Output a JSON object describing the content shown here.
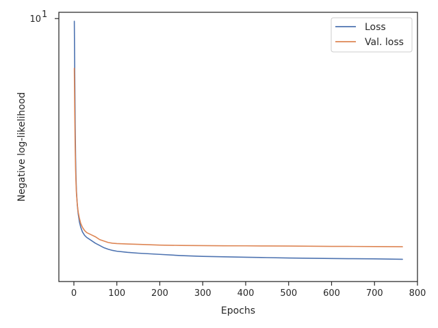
{
  "chart_data": {
    "type": "line",
    "title": "",
    "xlabel": "Epochs",
    "ylabel": "Negative log-likelihood",
    "xlim": [
      -35,
      800
    ],
    "ylim_log": [
      1.3,
      10.5
    ],
    "yscale": "log",
    "x_ticks": [
      0,
      100,
      200,
      300,
      400,
      500,
      600,
      700,
      800
    ],
    "y_ticks": [
      10
    ],
    "y_tick_labels": [
      {
        "base": "10",
        "exp": "1"
      }
    ],
    "grid": false,
    "legend": "top-right",
    "colors": {
      "loss": "#4c72b0",
      "val_loss": "#dd8452",
      "axis": "#262626"
    },
    "series": [
      {
        "name": "Loss",
        "color": "#4c72b0",
        "x": [
          1,
          2,
          3,
          4,
          5,
          6,
          8,
          10,
          13,
          16,
          20,
          25,
          30,
          40,
          50,
          60,
          70,
          80,
          90,
          100,
          125,
          150,
          200,
          250,
          300,
          350,
          400,
          450,
          500,
          550,
          600,
          650,
          700,
          765
        ],
        "y": [
          9.8,
          6.5,
          4.4,
          3.4,
          2.9,
          2.62,
          2.35,
          2.2,
          2.06,
          1.98,
          1.91,
          1.86,
          1.83,
          1.79,
          1.75,
          1.72,
          1.69,
          1.67,
          1.655,
          1.645,
          1.63,
          1.62,
          1.605,
          1.59,
          1.58,
          1.575,
          1.57,
          1.565,
          1.56,
          1.557,
          1.554,
          1.552,
          1.55,
          1.545
        ]
      },
      {
        "name": "Val. loss",
        "color": "#dd8452",
        "x": [
          1,
          2,
          3,
          4,
          5,
          6,
          8,
          10,
          13,
          16,
          20,
          25,
          30,
          40,
          50,
          60,
          70,
          80,
          90,
          100,
          125,
          150,
          200,
          250,
          300,
          350,
          400,
          450,
          500,
          550,
          600,
          650,
          700,
          765
        ],
        "y": [
          6.8,
          4.8,
          3.7,
          3.1,
          2.78,
          2.57,
          2.36,
          2.23,
          2.12,
          2.04,
          1.98,
          1.93,
          1.9,
          1.87,
          1.84,
          1.8,
          1.78,
          1.76,
          1.75,
          1.745,
          1.74,
          1.735,
          1.725,
          1.72,
          1.718,
          1.716,
          1.715,
          1.713,
          1.712,
          1.71,
          1.708,
          1.707,
          1.705,
          1.703
        ]
      }
    ]
  }
}
